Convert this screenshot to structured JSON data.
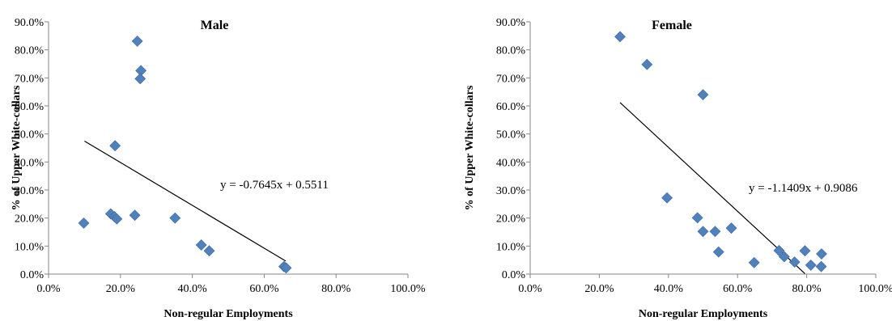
{
  "chart_data": [
    {
      "type": "scatter",
      "title": "Male",
      "xlabel": "Non-regular Employments",
      "ylabel": "% of Upper White-collars",
      "xlim": [
        0,
        1
      ],
      "ylim": [
        0,
        0.9
      ],
      "x_ticks": [
        "0.0%",
        "20.0%",
        "40.0%",
        "60.0%",
        "80.0%",
        "100.0%"
      ],
      "y_ticks": [
        "0.0%",
        "10.0%",
        "20.0%",
        "30.0%",
        "40.0%",
        "50.0%",
        "60.0%",
        "70.0%",
        "80.0%",
        "90.0%"
      ],
      "grid": false,
      "marker": "diamond",
      "marker_color": "#4f81bd",
      "points": [
        {
          "x": 0.098,
          "y": 0.182
        },
        {
          "x": 0.173,
          "y": 0.215
        },
        {
          "x": 0.183,
          "y": 0.205
        },
        {
          "x": 0.19,
          "y": 0.197
        },
        {
          "x": 0.185,
          "y": 0.458
        },
        {
          "x": 0.24,
          "y": 0.21
        },
        {
          "x": 0.247,
          "y": 0.831
        },
        {
          "x": 0.257,
          "y": 0.726
        },
        {
          "x": 0.255,
          "y": 0.697
        },
        {
          "x": 0.352,
          "y": 0.2
        },
        {
          "x": 0.425,
          "y": 0.104
        },
        {
          "x": 0.447,
          "y": 0.083
        },
        {
          "x": 0.655,
          "y": 0.027
        },
        {
          "x": 0.661,
          "y": 0.022
        }
      ],
      "trendline": {
        "slope": -0.7645,
        "intercept": 0.5511,
        "x_range": [
          0.1,
          0.66
        ],
        "color": "#000000"
      },
      "equation": "y = -0.7645x + 0.5511"
    },
    {
      "type": "scatter",
      "title": "Female",
      "xlabel": "Non-regular Employments",
      "ylabel": "% of Upper White-collars",
      "xlim": [
        0,
        1
      ],
      "ylim": [
        0,
        0.9
      ],
      "x_ticks": [
        "0.0%",
        "20.0%",
        "40.0%",
        "60.0%",
        "80.0%",
        "100.0%"
      ],
      "y_ticks": [
        "0.0%",
        "10.0%",
        "20.0%",
        "30.0%",
        "40.0%",
        "50.0%",
        "60.0%",
        "70.0%",
        "80.0%",
        "90.0%"
      ],
      "grid": false,
      "marker": "diamond",
      "marker_color": "#4f81bd",
      "points": [
        {
          "x": 0.26,
          "y": 0.847
        },
        {
          "x": 0.338,
          "y": 0.748
        },
        {
          "x": 0.5,
          "y": 0.64
        },
        {
          "x": 0.396,
          "y": 0.272
        },
        {
          "x": 0.484,
          "y": 0.201
        },
        {
          "x": 0.5,
          "y": 0.152
        },
        {
          "x": 0.535,
          "y": 0.152
        },
        {
          "x": 0.582,
          "y": 0.164
        },
        {
          "x": 0.545,
          "y": 0.079
        },
        {
          "x": 0.648,
          "y": 0.041
        },
        {
          "x": 0.72,
          "y": 0.084
        },
        {
          "x": 0.735,
          "y": 0.062
        },
        {
          "x": 0.765,
          "y": 0.043
        },
        {
          "x": 0.795,
          "y": 0.083
        },
        {
          "x": 0.812,
          "y": 0.032
        },
        {
          "x": 0.843,
          "y": 0.072
        },
        {
          "x": 0.842,
          "y": 0.027
        }
      ],
      "trendline": {
        "slope": -1.1409,
        "intercept": 0.9086,
        "x_range": [
          0.26,
          0.795
        ],
        "color": "#000000"
      },
      "equation": "y = -1.1409x + 0.9086"
    }
  ]
}
